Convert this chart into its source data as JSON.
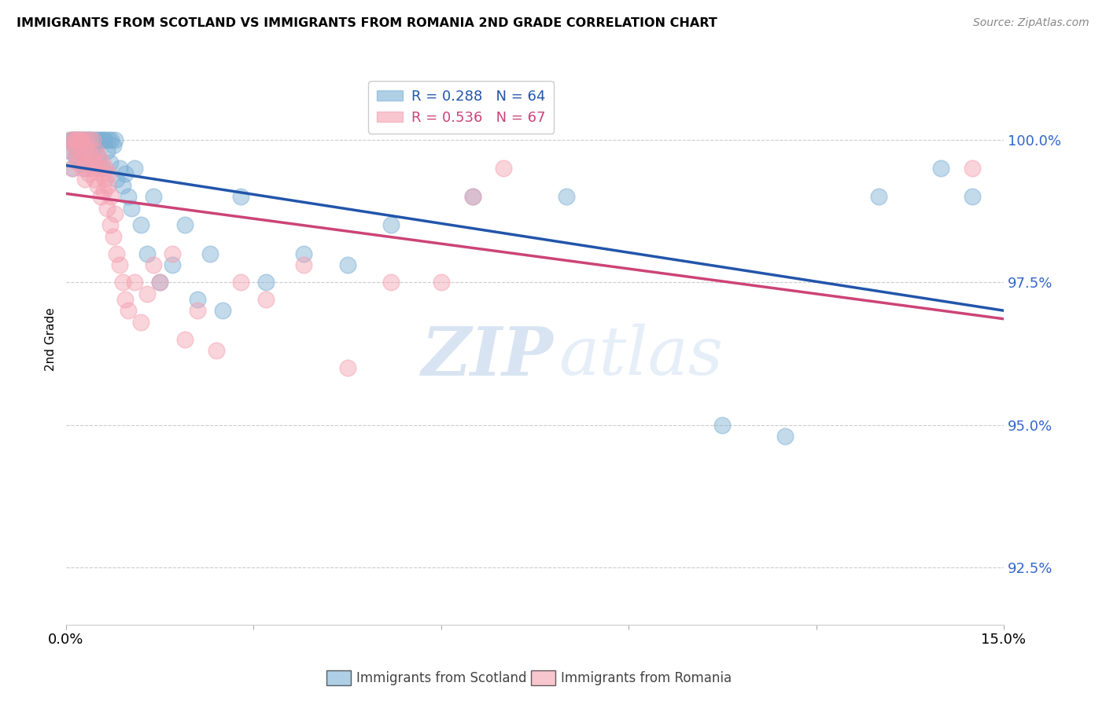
{
  "title": "IMMIGRANTS FROM SCOTLAND VS IMMIGRANTS FROM ROMANIA 2ND GRADE CORRELATION CHART",
  "source": "Source: ZipAtlas.com",
  "ylabel": "2nd Grade",
  "y_ticks": [
    92.5,
    95.0,
    97.5,
    100.0
  ],
  "y_tick_labels": [
    "92.5%",
    "95.0%",
    "97.5%",
    "100.0%"
  ],
  "x_range": [
    0.0,
    15.0
  ],
  "y_range": [
    91.5,
    101.5
  ],
  "scotland_R": 0.288,
  "scotland_N": 64,
  "romania_R": 0.536,
  "romania_N": 67,
  "scotland_color": "#7BAFD4",
  "romania_color": "#F4A0B0",
  "scotland_line_color": "#2255AA",
  "romania_line_color": "#CC4477",
  "watermark_zip": "ZIP",
  "watermark_atlas": "atlas",
  "legend_label_scotland": "Immigrants from Scotland",
  "legend_label_romania": "Immigrants from Romania",
  "scotland_x": [
    0.05,
    0.08,
    0.1,
    0.1,
    0.12,
    0.13,
    0.15,
    0.15,
    0.18,
    0.2,
    0.2,
    0.22,
    0.25,
    0.25,
    0.28,
    0.3,
    0.3,
    0.33,
    0.35,
    0.38,
    0.4,
    0.42,
    0.45,
    0.48,
    0.5,
    0.52,
    0.55,
    0.58,
    0.6,
    0.62,
    0.65,
    0.68,
    0.7,
    0.72,
    0.75,
    0.78,
    0.8,
    0.85,
    0.9,
    0.95,
    1.0,
    1.05,
    1.1,
    1.2,
    1.3,
    1.4,
    1.5,
    1.7,
    1.9,
    2.1,
    2.3,
    2.5,
    2.8,
    3.2,
    3.8,
    4.5,
    5.2,
    6.5,
    8.0,
    10.5,
    11.5,
    13.0,
    14.0,
    14.5
  ],
  "scotland_y": [
    99.8,
    100.0,
    100.0,
    99.5,
    100.0,
    99.9,
    100.0,
    99.7,
    100.0,
    100.0,
    99.8,
    100.0,
    100.0,
    99.6,
    100.0,
    100.0,
    99.5,
    100.0,
    100.0,
    100.0,
    99.8,
    100.0,
    99.9,
    100.0,
    99.7,
    100.0,
    100.0,
    99.5,
    100.0,
    100.0,
    99.8,
    100.0,
    99.6,
    100.0,
    99.9,
    100.0,
    99.3,
    99.5,
    99.2,
    99.4,
    99.0,
    98.8,
    99.5,
    98.5,
    98.0,
    99.0,
    97.5,
    97.8,
    98.5,
    97.2,
    98.0,
    97.0,
    99.0,
    97.5,
    98.0,
    97.8,
    98.5,
    99.0,
    99.0,
    95.0,
    94.8,
    99.0,
    99.5,
    99.0
  ],
  "romania_x": [
    0.05,
    0.08,
    0.1,
    0.12,
    0.13,
    0.15,
    0.17,
    0.18,
    0.2,
    0.2,
    0.22,
    0.23,
    0.25,
    0.27,
    0.28,
    0.3,
    0.3,
    0.32,
    0.33,
    0.35,
    0.37,
    0.38,
    0.4,
    0.42,
    0.43,
    0.45,
    0.47,
    0.48,
    0.5,
    0.52,
    0.53,
    0.55,
    0.57,
    0.58,
    0.6,
    0.62,
    0.63,
    0.65,
    0.67,
    0.68,
    0.7,
    0.72,
    0.75,
    0.78,
    0.8,
    0.85,
    0.9,
    0.95,
    1.0,
    1.1,
    1.2,
    1.3,
    1.4,
    1.5,
    1.7,
    1.9,
    2.1,
    2.4,
    2.8,
    3.2,
    3.8,
    4.5,
    5.2,
    6.0,
    6.5,
    7.0,
    14.5
  ],
  "romania_y": [
    100.0,
    99.8,
    99.5,
    100.0,
    99.9,
    100.0,
    99.7,
    100.0,
    100.0,
    99.6,
    99.8,
    100.0,
    100.0,
    99.5,
    99.7,
    99.9,
    99.3,
    100.0,
    99.6,
    99.8,
    99.4,
    100.0,
    99.7,
    99.5,
    100.0,
    99.3,
    99.6,
    99.8,
    99.2,
    99.5,
    99.7,
    99.0,
    99.4,
    99.6,
    99.1,
    99.3,
    99.5,
    98.8,
    99.2,
    99.4,
    98.5,
    99.0,
    98.3,
    98.7,
    98.0,
    97.8,
    97.5,
    97.2,
    97.0,
    97.5,
    96.8,
    97.3,
    97.8,
    97.5,
    98.0,
    96.5,
    97.0,
    96.3,
    97.5,
    97.2,
    97.8,
    96.0,
    97.5,
    97.5,
    99.0,
    99.5,
    99.5
  ]
}
